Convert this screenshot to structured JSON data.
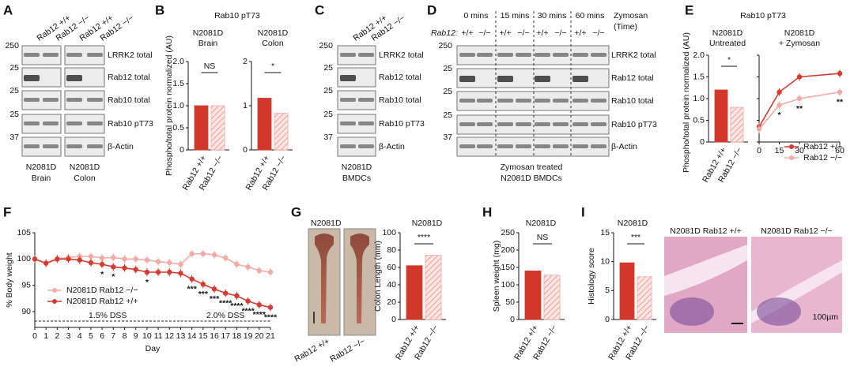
{
  "panels": {
    "a": {
      "letter": "A",
      "lanes": [
        "Rab12 +/+",
        "Rab12 −/−",
        "Rab12 +/+",
        "Rab12 −/−"
      ],
      "bands": [
        "LRRK2 total",
        "Rab12 total",
        "Rab10 total",
        "Rab10 pT73",
        "β-Actin"
      ],
      "mw": [
        "250",
        "25",
        "25",
        "25",
        "37"
      ],
      "groups": [
        [
          "N2081D",
          "Brain"
        ],
        [
          "N2081D",
          "Colon"
        ]
      ]
    },
    "b": {
      "letter": "B",
      "title": "Rab10 pT73",
      "ylabel": "Phospho/total protein normalized (AU)",
      "charts": [
        {
          "type": "bar",
          "title": "N2081D",
          "subtitle": "Brain",
          "categories": [
            "Rab12 +/+",
            "Rab12 −/−"
          ],
          "values": [
            1.0,
            1.0
          ],
          "colors": [
            "#d2372c",
            "#f2aaa2"
          ],
          "ylim": [
            0,
            2
          ],
          "yticks": [
            0,
            0.5,
            {
              "value": 1,
              "label": "1.0"
            },
            1.5,
            {
              "value": 2,
              "label": "2.0"
            }
          ],
          "significance": "NS"
        },
        {
          "type": "bar",
          "title": "N2081D",
          "subtitle": "Colon",
          "categories": [
            "Rab12 +/+",
            "Rab12 −/−"
          ],
          "values": [
            1.17,
            0.83
          ],
          "colors": [
            "#d2372c",
            "#f2aaa2"
          ],
          "ylim": [
            0,
            2
          ],
          "yticks": [
            0,
            1,
            2
          ],
          "significance": "*"
        }
      ]
    },
    "c": {
      "letter": "C",
      "lanes": [
        "Rab12 +/+",
        "Rab12 −/−"
      ],
      "bands": [
        "LRRK2 total",
        "Rab12 total",
        "Rab10 total",
        "Rab10 pT73",
        "β-Actin"
      ],
      "mw": [
        "250",
        "25",
        "25",
        "25",
        "37"
      ],
      "groups": [
        [
          "N2081D",
          "BMDCs"
        ]
      ]
    },
    "d": {
      "letter": "D",
      "times": [
        "0 mins",
        "15 mins",
        "30 mins",
        "60 mins"
      ],
      "treatment": [
        "Zymosan",
        "(Time)"
      ],
      "genotype_label": "Rab12:",
      "genotypes": [
        "+/+",
        "−/−"
      ],
      "bands": [
        "LRRK2 total",
        "Rab12 total",
        "Rab10 total",
        "Rab10 pT73",
        "β-Actin"
      ],
      "mw": [
        "250",
        "25",
        "25",
        "25",
        "37"
      ],
      "caption": [
        "Zymosan treated",
        "N2081D BMDCs"
      ]
    },
    "e": {
      "letter": "E",
      "title": "Rab10 pT73",
      "ylabel": "Phospho/total protein normalized (AU)",
      "charts": [
        {
          "type": "bar",
          "title": "N2081D",
          "subtitle": "Untreated",
          "categories": [
            "Rab12 +/+",
            "Rab12 −/−"
          ],
          "values": [
            1.2,
            0.8
          ],
          "colors": [
            "#d2372c",
            "#f2aaa2"
          ],
          "ylim": [
            0,
            2
          ],
          "yticks": [
            0,
            0.5,
            {
              "value": 1,
              "label": "1.0"
            },
            1.5,
            {
              "value": 2,
              "label": "2.0"
            }
          ],
          "significance": "*"
        },
        {
          "type": "line",
          "title": "N2081D",
          "subtitle": "+ Zymosan",
          "x": [
            0,
            15,
            30,
            60
          ],
          "xticks": [
            0,
            15,
            30,
            60
          ],
          "ylim": [
            0,
            2
          ],
          "yticks": [
            0,
            0.5,
            1,
            1.5,
            2
          ],
          "series": [
            {
              "name": "Rab12 +/+",
              "color": "#d63a30",
              "values": [
                0.35,
                1.15,
                1.5,
                1.58
              ]
            },
            {
              "name": "Rab12 −/−",
              "color": "#f3aaa3",
              "values": [
                0.3,
                0.85,
                1.0,
                1.15
              ]
            }
          ],
          "annotations": [
            {
              "x": 15,
              "label": "*"
            },
            {
              "x": 30,
              "label": "**"
            },
            {
              "x": 60,
              "label": "**"
            }
          ]
        }
      ]
    },
    "f": {
      "letter": "F",
      "chart": {
        "type": "line",
        "ylabel": "% Body weight",
        "xlabel": "Day",
        "x": [
          0,
          1,
          2,
          3,
          4,
          5,
          6,
          7,
          8,
          9,
          10,
          11,
          12,
          13,
          14,
          15,
          16,
          17,
          18,
          19,
          20,
          21
        ],
        "xticks": [
          0,
          1,
          2,
          3,
          4,
          5,
          6,
          7,
          8,
          9,
          10,
          11,
          12,
          13,
          14,
          15,
          16,
          17,
          18,
          19,
          20,
          21
        ],
        "ylim": [
          87,
          105
        ],
        "yticks": [
          90,
          95,
          100,
          105
        ],
        "series": [
          {
            "name": "N2081D Rab12 −/−",
            "color": "#f3aaa3",
            "values": [
              100,
              99.2,
              100,
              100.3,
              100.5,
              100.5,
              100.2,
              100.3,
              100,
              100,
              99.8,
              99.5,
              99.3,
              99,
              101,
              101,
              100.8,
              100.2,
              99,
              98.5,
              97.8,
              97.5
            ]
          },
          {
            "name": "N2081D Rab12 +/+",
            "color": "#d63a30",
            "values": [
              100,
              99.2,
              100,
              100,
              99.8,
              99.3,
              99,
              98.5,
              98.3,
              98,
              97.5,
              97.5,
              97.5,
              97.3,
              96.2,
              95.2,
              94.3,
              93.5,
              93,
              92,
              91.3,
              90.8
            ]
          }
        ],
        "annotations": [
          {
            "x": 6,
            "label": "*"
          },
          {
            "x": 7,
            "label": "*"
          },
          {
            "x": 10,
            "label": "*"
          },
          {
            "x": 14,
            "label": "***"
          },
          {
            "x": 15,
            "label": "***"
          },
          {
            "x": 16,
            "label": "***"
          },
          {
            "x": 17,
            "label": "****"
          },
          {
            "x": 18,
            "label": "****"
          },
          {
            "x": 19,
            "label": "****"
          },
          {
            "x": 20,
            "label": "****"
          },
          {
            "x": 21,
            "label": "****"
          }
        ],
        "treatments": [
          {
            "label": "1.5% DSS",
            "from": 0,
            "to": 13
          },
          {
            "label": "2.0% DSS",
            "from": 13,
            "to": 21
          }
        ]
      }
    },
    "g": {
      "letter": "G",
      "image_title": "N2081D",
      "image_labels": [
        "Rab12 +/+",
        "Rab12 −/−"
      ],
      "chart": {
        "type": "bar",
        "title": "N2081D",
        "ylabel": "Colon Length (mm)",
        "categories": [
          "Rab12 +/+",
          "Rab12 −/−"
        ],
        "values": [
          62,
          74
        ],
        "colors": [
          "#d2372c",
          "#f2aaa2"
        ],
        "ylim": [
          0,
          100
        ],
        "yticks": [
          0,
          20,
          40,
          60,
          80,
          100
        ],
        "significance": "****"
      }
    },
    "h": {
      "letter": "H",
      "chart": {
        "type": "bar",
        "title": "N2081D",
        "ylabel": "Spleen weight (mg)",
        "categories": [
          "Rab12 +/+",
          "Rab12 −/−"
        ],
        "values": [
          140,
          128
        ],
        "colors": [
          "#d2372c",
          "#f2aaa2"
        ],
        "ylim": [
          0,
          250
        ],
        "yticks": [
          0,
          50,
          100,
          150,
          200,
          250
        ],
        "significance": "NS"
      }
    },
    "i": {
      "letter": "I",
      "chart": {
        "type": "bar",
        "title": "N2081D",
        "ylabel": "Histology score",
        "categories": [
          "Rab12 +/+",
          "Rab12 −/−"
        ],
        "values": [
          9.8,
          7.4
        ],
        "colors": [
          "#d2372c",
          "#f2aaa2"
        ],
        "ylim": [
          0,
          15
        ],
        "yticks": [
          0,
          5,
          10,
          15
        ],
        "significance": "***"
      },
      "image_labels": [
        "N2081D Rab12 +/+",
        "N2081D Rab12 −/−"
      ],
      "scale": "100µm"
    }
  }
}
